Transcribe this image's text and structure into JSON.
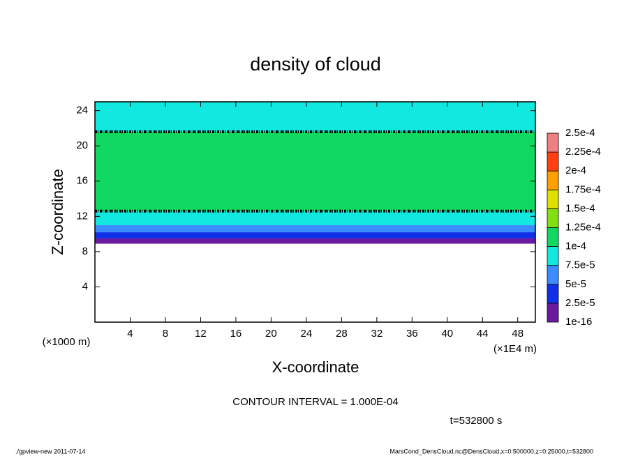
{
  "chart_data": {
    "type": "contour",
    "title": "density of cloud",
    "x_label": "X-coordinate",
    "y_label": "Z-coordinate",
    "x_unit": "(×1E4 m)",
    "y_unit": "(×1000 m)",
    "contour_interval": {
      "value": 0.0001,
      "label": "CONTOUR INTERVAL = 1.000E-04"
    },
    "time": "t=532800 s",
    "footer_left": "./gpview-new   2011-07-14",
    "footer_right": "MarsCond_DensCloud.nc@DensCloud,x=0:500000,z=0:25000,t=532800",
    "xlim": [
      0,
      50
    ],
    "xticks": [
      4,
      8,
      12,
      16,
      20,
      24,
      28,
      32,
      36,
      40,
      44,
      48
    ],
    "ylim": [
      0,
      25
    ],
    "yticks": [
      4,
      8,
      12,
      16,
      20,
      24
    ],
    "y_bins": [
      8.9,
      9.5,
      10.2,
      11,
      12.6,
      21.6,
      25
    ],
    "values": [
      1e-05,
      3e-05,
      5.5e-05,
      8e-05,
      0.00011,
      8.5e-05
    ],
    "levels": [
      1e-16,
      {
        "value": 2.5e-05,
        "label": "2.5e-5"
      },
      {
        "value": 5e-05,
        "label": "5e-5"
      },
      {
        "value": 7.5e-05,
        "label": "7.5e-5"
      },
      {
        "value": 0.0001,
        "label": "1e-4"
      },
      {
        "value": 0.000125,
        "label": "1.25e-4"
      },
      {
        "value": 0.00015,
        "label": "1.5e-4"
      },
      {
        "value": 0.000175,
        "label": "1.75e-4"
      },
      {
        "value": 0.0002,
        "label": "2e-4"
      },
      {
        "value": 0.000225,
        "label": "2.25e-4"
      },
      {
        "value": 0.00025,
        "label": "2.5e-4"
      }
    ],
    "level_colors": [
      "#6a1a9e",
      "#1030e8",
      "#3c8cff",
      "#10e8e0",
      "#10d860",
      "#80e010",
      "#e0e000",
      "#ffa000",
      "#ff4010",
      "#f08080"
    ]
  }
}
